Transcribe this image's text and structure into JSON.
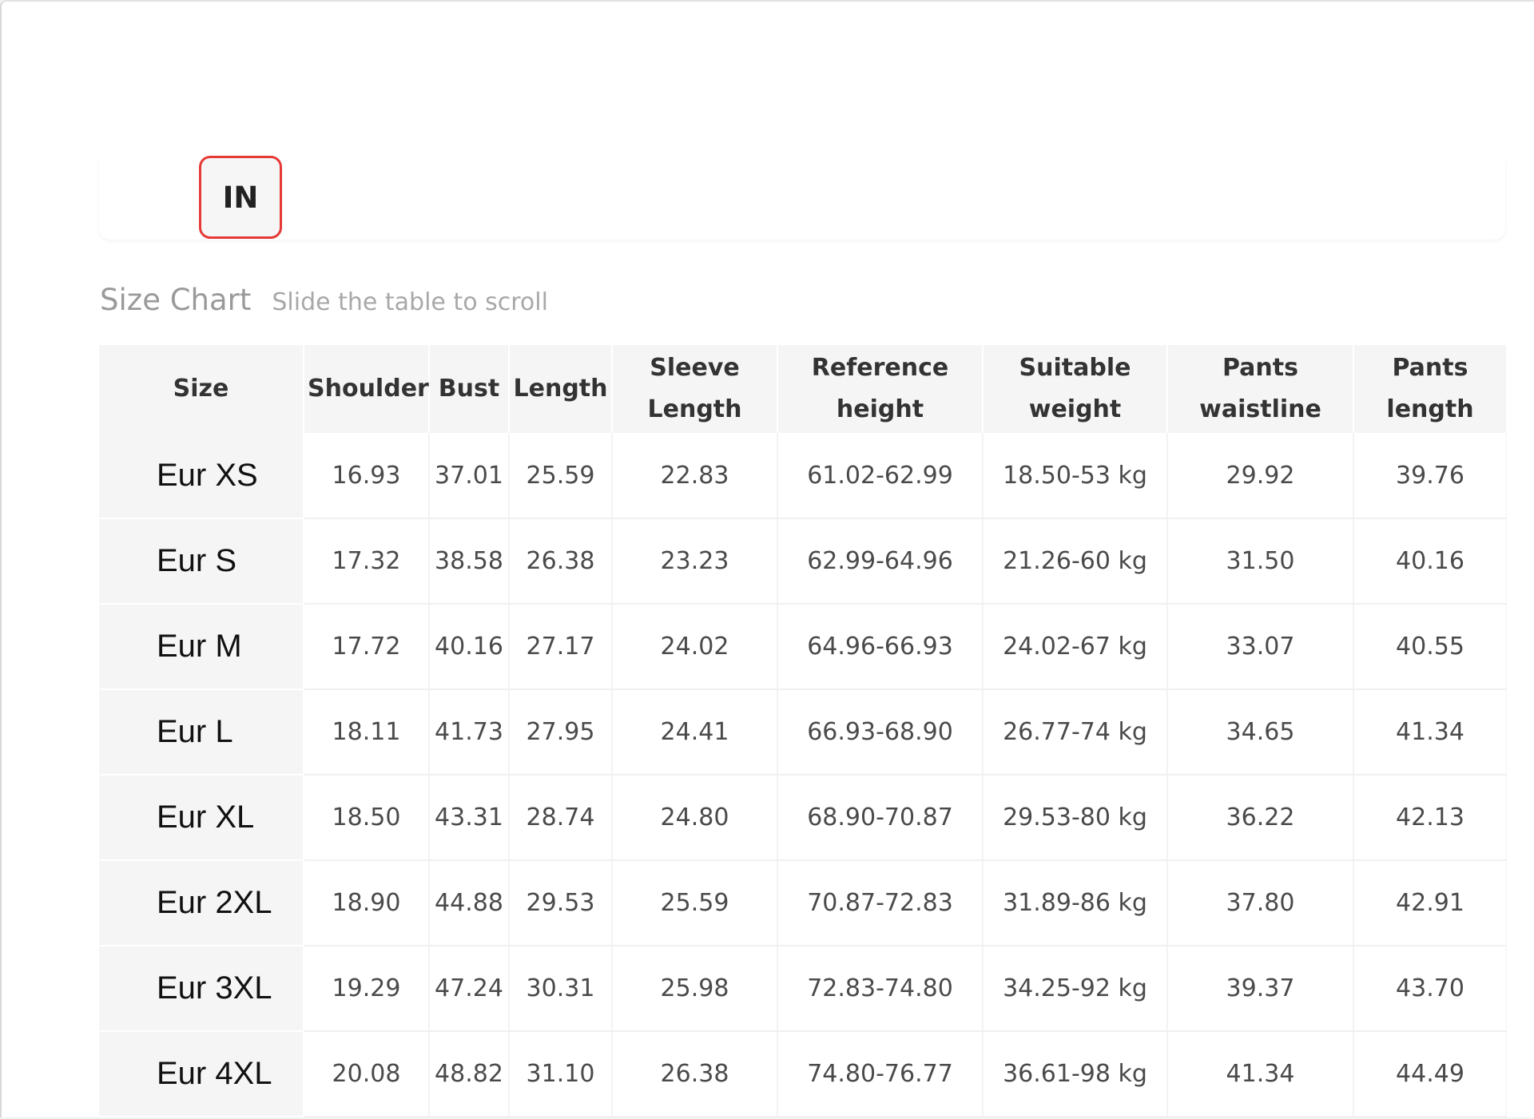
{
  "unit_toggle": {
    "label": "IN",
    "selected": true,
    "accent_color": "#e53935"
  },
  "heading": {
    "title": "Size Chart",
    "hint": "Slide the table to scroll"
  },
  "table": {
    "headers": [
      "Size",
      "Shoulder",
      "Bust",
      "Length",
      "Sleeve\nLength",
      "Reference\nheight",
      "Suitable\nweight",
      "Pants\nwaistline",
      "Pants\nlength"
    ],
    "rows": [
      [
        "Eur XS",
        "16.93",
        "37.01",
        "25.59",
        "22.83",
        "61.02-62.99",
        "18.50-53 kg",
        "29.92",
        "39.76"
      ],
      [
        "Eur S",
        "17.32",
        "38.58",
        "26.38",
        "23.23",
        "62.99-64.96",
        "21.26-60 kg",
        "31.50",
        "40.16"
      ],
      [
        "Eur M",
        "17.72",
        "40.16",
        "27.17",
        "24.02",
        "64.96-66.93",
        "24.02-67 kg",
        "33.07",
        "40.55"
      ],
      [
        "Eur L",
        "18.11",
        "41.73",
        "27.95",
        "24.41",
        "66.93-68.90",
        "26.77-74 kg",
        "34.65",
        "41.34"
      ],
      [
        "Eur XL",
        "18.50",
        "43.31",
        "28.74",
        "24.80",
        "68.90-70.87",
        "29.53-80 kg",
        "36.22",
        "42.13"
      ],
      [
        "Eur 2XL",
        "18.90",
        "44.88",
        "29.53",
        "25.59",
        "70.87-72.83",
        "31.89-86 kg",
        "37.80",
        "42.91"
      ],
      [
        "Eur 3XL",
        "19.29",
        "47.24",
        "30.31",
        "25.98",
        "72.83-74.80",
        "34.25-92 kg",
        "39.37",
        "43.70"
      ],
      [
        "Eur 4XL",
        "20.08",
        "48.82",
        "31.10",
        "26.38",
        "74.80-76.77",
        "36.61-98 kg",
        "41.34",
        "44.49"
      ]
    ]
  }
}
